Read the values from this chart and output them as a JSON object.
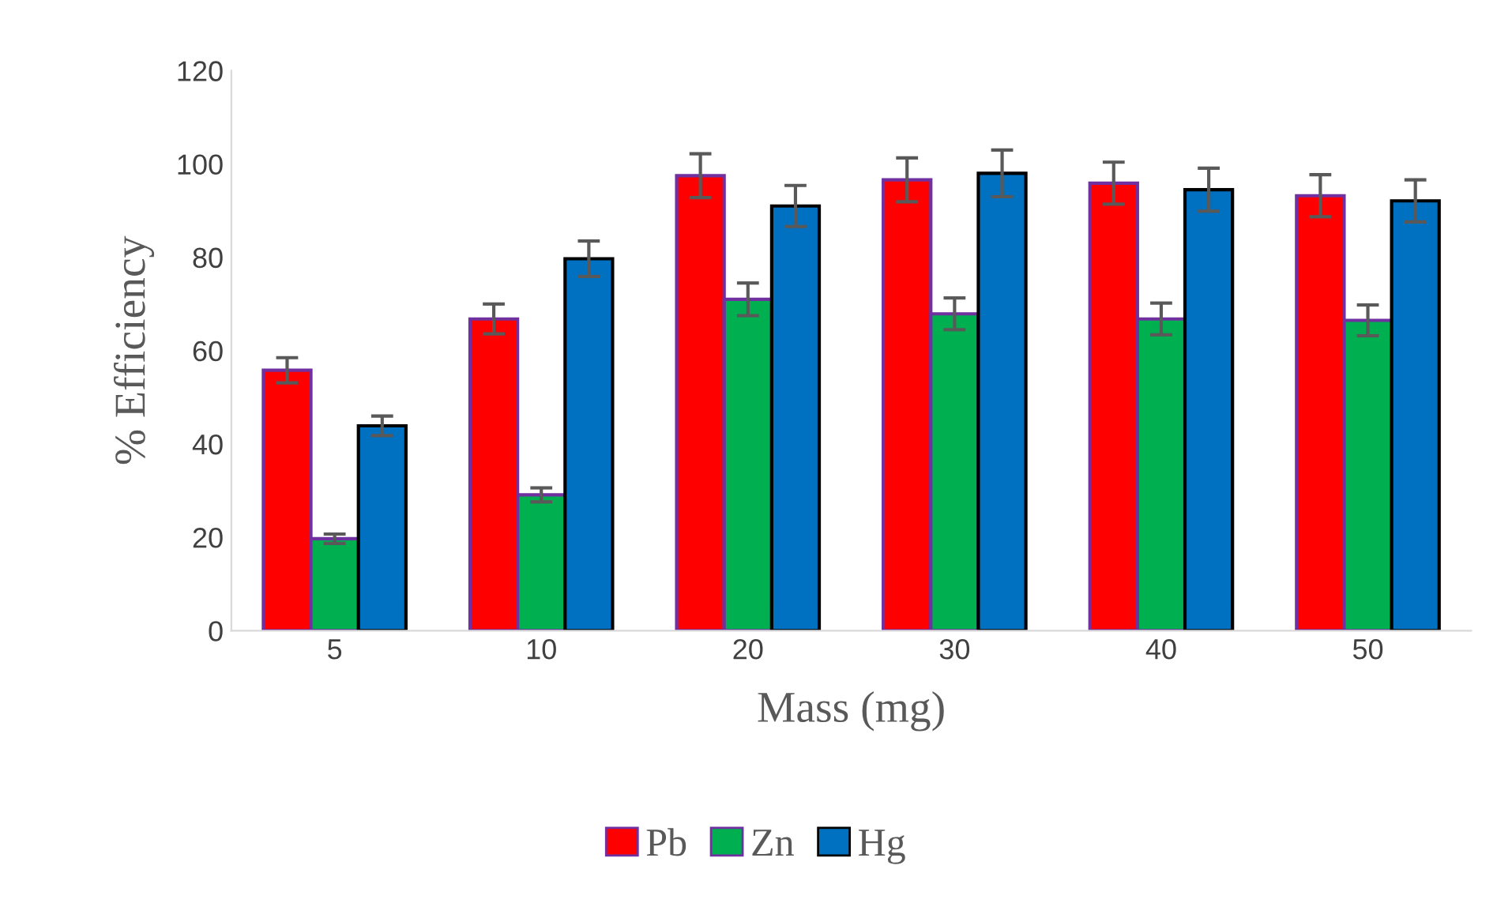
{
  "chart_data": {
    "type": "bar",
    "xlabel": "Mass (mg)",
    "ylabel": "% Efficiency",
    "categories": [
      "5",
      "10",
      "20",
      "30",
      "40",
      "50"
    ],
    "series": [
      {
        "name": "Pb",
        "color": "#ff0000",
        "values": [
          55.8,
          66.8,
          97.5,
          96.6,
          95.9,
          93.2
        ],
        "errors": [
          2.7,
          3.2,
          4.7,
          4.7,
          4.5,
          4.5
        ]
      },
      {
        "name": "Zn",
        "color": "#00b050",
        "values": [
          19.7,
          29.1,
          71.0,
          67.9,
          66.8,
          66.5
        ],
        "errors": [
          1.0,
          1.5,
          3.5,
          3.4,
          3.4,
          3.3
        ]
      },
      {
        "name": "Hg",
        "color": "#0070c0",
        "values": [
          43.9,
          79.7,
          91.0,
          98.0,
          94.5,
          92.1
        ],
        "errors": [
          2.1,
          3.8,
          4.4,
          5.0,
          4.6,
          4.5
        ]
      }
    ],
    "ylim": [
      0,
      120
    ],
    "yticks": [
      0,
      20,
      40,
      60,
      80,
      100,
      120
    ],
    "grid": false,
    "legend": "bottom"
  }
}
